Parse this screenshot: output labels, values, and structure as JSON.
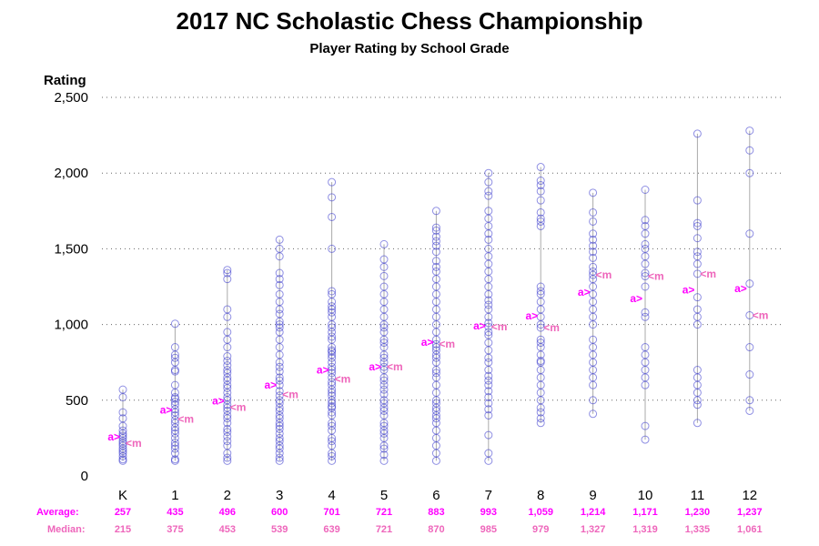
{
  "chart_data": {
    "type": "scatter",
    "title": "2017 NC Scholastic Chess Championship",
    "subtitle": "Player Rating by School Grade",
    "ylabel": "Rating",
    "xlabel": "",
    "ylim": [
      0,
      2500
    ],
    "y_ticks": [
      0,
      500,
      1000,
      1500,
      2000,
      2500
    ],
    "y_tick_labels": [
      "0",
      "500",
      "1,000",
      "1,500",
      "2,000",
      "2,500"
    ],
    "grid": "horizontal dotted",
    "categories": [
      "K",
      "1",
      "2",
      "3",
      "4",
      "5",
      "6",
      "7",
      "8",
      "9",
      "10",
      "11",
      "12"
    ],
    "series": [
      {
        "values": [
          [
            100,
            110,
            130,
            150,
            165,
            180,
            200,
            215,
            230,
            250,
            265,
            280,
            300,
            330,
            380,
            420,
            520,
            570
          ],
          [
            100,
            110,
            150,
            180,
            200,
            220,
            250,
            280,
            300,
            320,
            350,
            370,
            400,
            420,
            440,
            470,
            490,
            510,
            520,
            550,
            600,
            690,
            700,
            750,
            780,
            800,
            850,
            1005
          ],
          [
            100,
            120,
            150,
            200,
            230,
            260,
            290,
            310,
            350,
            380,
            400,
            430,
            450,
            470,
            500,
            520,
            550,
            580,
            600,
            630,
            650,
            680,
            700,
            730,
            760,
            790,
            850,
            900,
            950,
            1050,
            1100,
            1300,
            1340,
            1360
          ],
          [
            100,
            120,
            150,
            180,
            200,
            230,
            250,
            280,
            310,
            330,
            350,
            380,
            400,
            430,
            450,
            480,
            500,
            530,
            560,
            600,
            630,
            650,
            690,
            720,
            750,
            800,
            850,
            900,
            950,
            980,
            1000,
            1020,
            1070,
            1100,
            1150,
            1200,
            1260,
            1300,
            1340,
            1450,
            1500,
            1560
          ],
          [
            100,
            130,
            150,
            200,
            230,
            250,
            300,
            330,
            350,
            400,
            420,
            450,
            460,
            480,
            500,
            530,
            550,
            570,
            600,
            620,
            650,
            680,
            700,
            720,
            750,
            780,
            800,
            820,
            830,
            850,
            900,
            920,
            950,
            980,
            1000,
            1050,
            1080,
            1100,
            1120,
            1150,
            1200,
            1220,
            1500,
            1710,
            1840,
            1940
          ],
          [
            100,
            140,
            180,
            200,
            250,
            280,
            300,
            330,
            350,
            400,
            430,
            450,
            480,
            500,
            540,
            570,
            600,
            630,
            650,
            700,
            720,
            750,
            780,
            800,
            850,
            880,
            900,
            950,
            980,
            1000,
            1050,
            1100,
            1150,
            1200,
            1250,
            1320,
            1380,
            1430,
            1530
          ],
          [
            100,
            150,
            200,
            250,
            300,
            350,
            380,
            400,
            430,
            450,
            480,
            500,
            550,
            600,
            650,
            680,
            700,
            750,
            780,
            800,
            830,
            850,
            870,
            900,
            950,
            1000,
            1050,
            1100,
            1150,
            1200,
            1250,
            1300,
            1350,
            1380,
            1420,
            1480,
            1520,
            1550,
            1580,
            1620,
            1640,
            1750
          ],
          [
            100,
            150,
            270,
            400,
            440,
            480,
            520,
            560,
            600,
            630,
            660,
            700,
            750,
            780,
            830,
            880,
            930,
            950,
            985,
            1010,
            1050,
            1100,
            1130,
            1160,
            1200,
            1250,
            1300,
            1350,
            1400,
            1450,
            1500,
            1560,
            1600,
            1650,
            1700,
            1750,
            1850,
            1880,
            1940,
            2000
          ],
          [
            350,
            380,
            420,
            450,
            500,
            550,
            600,
            650,
            700,
            750,
            760,
            800,
            850,
            880,
            900,
            979,
            1000,
            1050,
            1100,
            1150,
            1200,
            1220,
            1250,
            1650,
            1680,
            1700,
            1740,
            1820,
            1880,
            1920,
            1950,
            2040
          ],
          [
            410,
            500,
            600,
            650,
            700,
            750,
            800,
            850,
            900,
            1000,
            1050,
            1100,
            1150,
            1200,
            1250,
            1300,
            1327,
            1350,
            1380,
            1440,
            1480,
            1520,
            1560,
            1600,
            1680,
            1740,
            1870
          ],
          [
            240,
            330,
            600,
            650,
            700,
            750,
            800,
            850,
            1050,
            1080,
            1250,
            1319,
            1340,
            1400,
            1450,
            1500,
            1530,
            1600,
            1650,
            1690,
            1890
          ],
          [
            350,
            470,
            500,
            550,
            600,
            650,
            700,
            1000,
            1050,
            1100,
            1180,
            1335,
            1400,
            1450,
            1480,
            1570,
            1650,
            1670,
            1820,
            2260
          ],
          [
            430,
            500,
            670,
            850,
            1061,
            1270,
            1600,
            2000,
            2150,
            2280
          ]
        ]
      }
    ],
    "stats": {
      "average_label": "Average:",
      "median_label": "Median:",
      "average": [
        257,
        435,
        496,
        600,
        701,
        721,
        883,
        993,
        1059,
        1214,
        1171,
        1230,
        1237
      ],
      "median": [
        215,
        375,
        453,
        539,
        639,
        721,
        870,
        985,
        979,
        1327,
        1319,
        1335,
        1061
      ],
      "average_text": [
        "257",
        "435",
        "496",
        "600",
        "701",
        "721",
        "883",
        "993",
        "1,059",
        "1,214",
        "1,171",
        "1,230",
        "1,237"
      ],
      "median_text": [
        "215",
        "375",
        "453",
        "539",
        "639",
        "721",
        "870",
        "985",
        "979",
        "1,327",
        "1,319",
        "1,335",
        "1,061"
      ],
      "average_marker": "a>",
      "median_marker": "<m"
    },
    "colors": {
      "points": "#3333cc",
      "whisker": "#aaaaaa",
      "average": "#ff00ff",
      "median": "#ee66bb",
      "grid": "#666666"
    }
  }
}
